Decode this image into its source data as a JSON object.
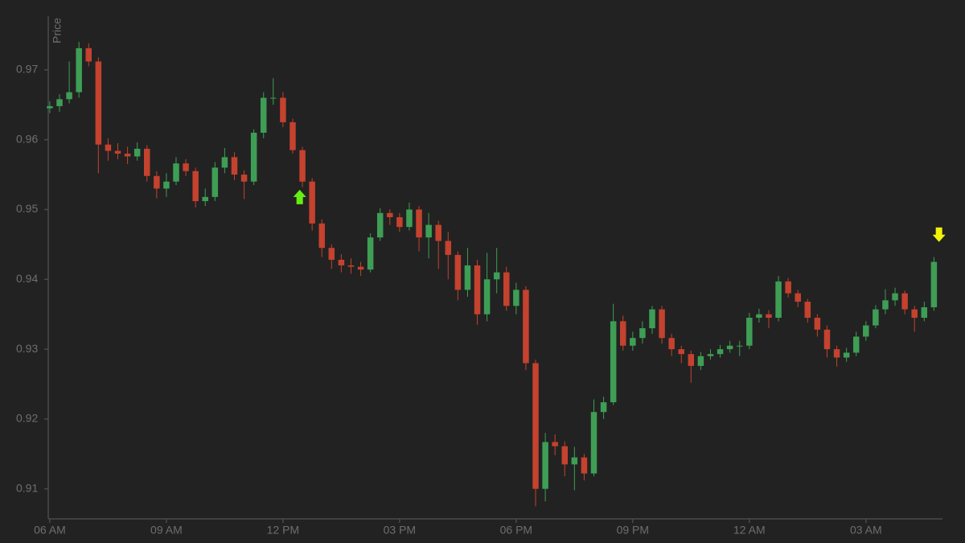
{
  "chart_data": {
    "type": "candlestick",
    "y_label": "Price",
    "xlim": [
      5.96,
      28.97
    ],
    "xticks": [
      {
        "value": 6,
        "label": "06 AM"
      },
      {
        "value": 9,
        "label": "09 AM"
      },
      {
        "value": 12,
        "label": "12 PM"
      },
      {
        "value": 15,
        "label": "03 PM"
      },
      {
        "value": 18,
        "label": "06 PM"
      },
      {
        "value": 21,
        "label": "09 PM"
      },
      {
        "value": 24,
        "label": "12 AM"
      },
      {
        "value": 27,
        "label": "03 AM"
      }
    ],
    "ylim": [
      0.9057,
      0.9777
    ],
    "yticks": [
      0.91,
      0.92,
      0.93,
      0.94,
      0.95,
      0.96,
      0.97
    ],
    "grid": false,
    "up_color": "#3e9e55",
    "down_color": "#c4422e",
    "x": [
      6,
      6.25,
      6.5,
      6.75,
      7,
      7.25,
      7.5,
      7.75,
      8,
      8.25,
      8.5,
      8.75,
      9,
      9.25,
      9.5,
      9.75,
      10,
      10.25,
      10.5,
      10.75,
      11,
      11.25,
      11.5,
      11.75,
      12,
      12.25,
      12.5,
      12.75,
      13,
      13.25,
      13.5,
      13.75,
      14,
      14.25,
      14.5,
      14.75,
      15,
      15.25,
      15.5,
      15.75,
      16,
      16.25,
      16.5,
      16.75,
      17,
      17.25,
      17.5,
      17.75,
      18,
      18.25,
      18.5,
      18.75,
      19,
      19.25,
      19.5,
      19.75,
      20,
      20.25,
      20.5,
      20.75,
      21,
      21.25,
      21.5,
      21.75,
      22,
      22.25,
      22.5,
      22.75,
      23,
      23.25,
      23.5,
      23.75,
      24,
      24.25,
      24.5,
      24.75,
      25,
      25.25,
      25.5,
      25.75,
      26,
      26.25,
      26.5,
      26.75,
      27,
      27.25,
      27.5,
      27.75,
      28,
      28.25,
      28.5,
      28.75
    ],
    "open": [
      0.9645,
      0.9648,
      0.9658,
      0.9668,
      0.9731,
      0.9712,
      0.9593,
      0.9584,
      0.958,
      0.9576,
      0.9587,
      0.9548,
      0.953,
      0.954,
      0.9566,
      0.9555,
      0.9512,
      0.9518,
      0.956,
      0.9575,
      0.955,
      0.954,
      0.961,
      0.966,
      0.966,
      0.9625,
      0.9585,
      0.954,
      0.948,
      0.9445,
      0.9428,
      0.942,
      0.9418,
      0.9414,
      0.946,
      0.9495,
      0.9489,
      0.9475,
      0.95,
      0.946,
      0.9478,
      0.9455,
      0.9435,
      0.9385,
      0.942,
      0.935,
      0.94,
      0.941,
      0.9362,
      0.9385,
      0.928,
      0.91,
      0.9167,
      0.9161,
      0.9135,
      0.9145,
      0.9122,
      0.921,
      0.9224,
      0.934,
      0.9305,
      0.9316,
      0.933,
      0.9357,
      0.9316,
      0.93,
      0.9293,
      0.9276,
      0.929,
      0.9293,
      0.93,
      0.9305,
      0.9305,
      0.9345,
      0.935,
      0.9345,
      0.9397,
      0.938,
      0.9368,
      0.9345,
      0.9328,
      0.93,
      0.9288,
      0.9295,
      0.9318,
      0.9334,
      0.9357,
      0.937,
      0.938,
      0.9357,
      0.9345,
      0.936
    ],
    "high": [
      0.9655,
      0.9665,
      0.9712,
      0.974,
      0.9738,
      0.9718,
      0.9602,
      0.9595,
      0.959,
      0.9596,
      0.9592,
      0.9555,
      0.9552,
      0.9575,
      0.9572,
      0.956,
      0.953,
      0.9568,
      0.9588,
      0.9582,
      0.9556,
      0.9615,
      0.9668,
      0.9688,
      0.9668,
      0.963,
      0.959,
      0.9545,
      0.9486,
      0.945,
      0.9436,
      0.943,
      0.9425,
      0.9466,
      0.9502,
      0.95,
      0.9495,
      0.951,
      0.9505,
      0.9495,
      0.9484,
      0.9468,
      0.944,
      0.9445,
      0.9428,
      0.9438,
      0.9445,
      0.9418,
      0.9395,
      0.939,
      0.9285,
      0.918,
      0.9178,
      0.9168,
      0.916,
      0.915,
      0.9228,
      0.9232,
      0.9365,
      0.9348,
      0.9325,
      0.934,
      0.9362,
      0.9362,
      0.9322,
      0.9305,
      0.9298,
      0.9296,
      0.93,
      0.9306,
      0.9312,
      0.9312,
      0.9352,
      0.9358,
      0.9356,
      0.9405,
      0.9402,
      0.9385,
      0.9372,
      0.935,
      0.9334,
      0.9305,
      0.9302,
      0.9325,
      0.934,
      0.9363,
      0.9386,
      0.9388,
      0.9384,
      0.9362,
      0.9368,
      0.9432
    ],
    "low": [
      0.9638,
      0.964,
      0.9652,
      0.966,
      0.9705,
      0.9552,
      0.957,
      0.9572,
      0.9565,
      0.957,
      0.954,
      0.9516,
      0.9518,
      0.9535,
      0.9548,
      0.9503,
      0.9505,
      0.9512,
      0.9552,
      0.9542,
      0.9515,
      0.9535,
      0.9602,
      0.965,
      0.9618,
      0.958,
      0.9532,
      0.947,
      0.9432,
      0.9415,
      0.941,
      0.9408,
      0.9405,
      0.941,
      0.9455,
      0.9478,
      0.9468,
      0.947,
      0.944,
      0.943,
      0.9415,
      0.94,
      0.937,
      0.9375,
      0.9335,
      0.934,
      0.938,
      0.9355,
      0.935,
      0.927,
      0.9075,
      0.9082,
      0.9148,
      0.9118,
      0.9098,
      0.9112,
      0.9118,
      0.92,
      0.922,
      0.9298,
      0.9298,
      0.9308,
      0.9322,
      0.9308,
      0.929,
      0.928,
      0.9252,
      0.927,
      0.9285,
      0.9288,
      0.9295,
      0.929,
      0.93,
      0.9338,
      0.933,
      0.934,
      0.9374,
      0.936,
      0.9338,
      0.9318,
      0.9288,
      0.9275,
      0.9282,
      0.929,
      0.9312,
      0.933,
      0.935,
      0.9362,
      0.935,
      0.9325,
      0.934,
      0.9355
    ],
    "close": [
      0.9648,
      0.9658,
      0.9668,
      0.9731,
      0.9712,
      0.9593,
      0.9584,
      0.958,
      0.9576,
      0.9587,
      0.9548,
      0.953,
      0.954,
      0.9566,
      0.9555,
      0.9512,
      0.9518,
      0.956,
      0.9575,
      0.955,
      0.954,
      0.961,
      0.966,
      0.966,
      0.9625,
      0.9585,
      0.954,
      0.948,
      0.9445,
      0.9428,
      0.942,
      0.9418,
      0.9414,
      0.946,
      0.9495,
      0.9489,
      0.9475,
      0.95,
      0.946,
      0.9478,
      0.9455,
      0.9435,
      0.9385,
      0.942,
      0.935,
      0.94,
      0.941,
      0.9362,
      0.9385,
      0.928,
      0.91,
      0.9167,
      0.9161,
      0.9135,
      0.9145,
      0.9122,
      0.921,
      0.9224,
      0.934,
      0.9305,
      0.9316,
      0.933,
      0.9357,
      0.9316,
      0.93,
      0.9293,
      0.9276,
      0.929,
      0.9293,
      0.93,
      0.9305,
      0.9305,
      0.9345,
      0.935,
      0.9345,
      0.9397,
      0.938,
      0.9368,
      0.9345,
      0.9328,
      0.93,
      0.9288,
      0.9295,
      0.9318,
      0.9334,
      0.9357,
      0.937,
      0.938,
      0.9357,
      0.9345,
      0.936,
      0.9425
    ],
    "markers": [
      {
        "x": 12.43,
        "y": 0.9518,
        "shape": "arrow-up",
        "color": "#66ee11"
      },
      {
        "x": 28.88,
        "y": 0.9464,
        "shape": "arrow-down",
        "color": "#f2f20a"
      }
    ]
  }
}
